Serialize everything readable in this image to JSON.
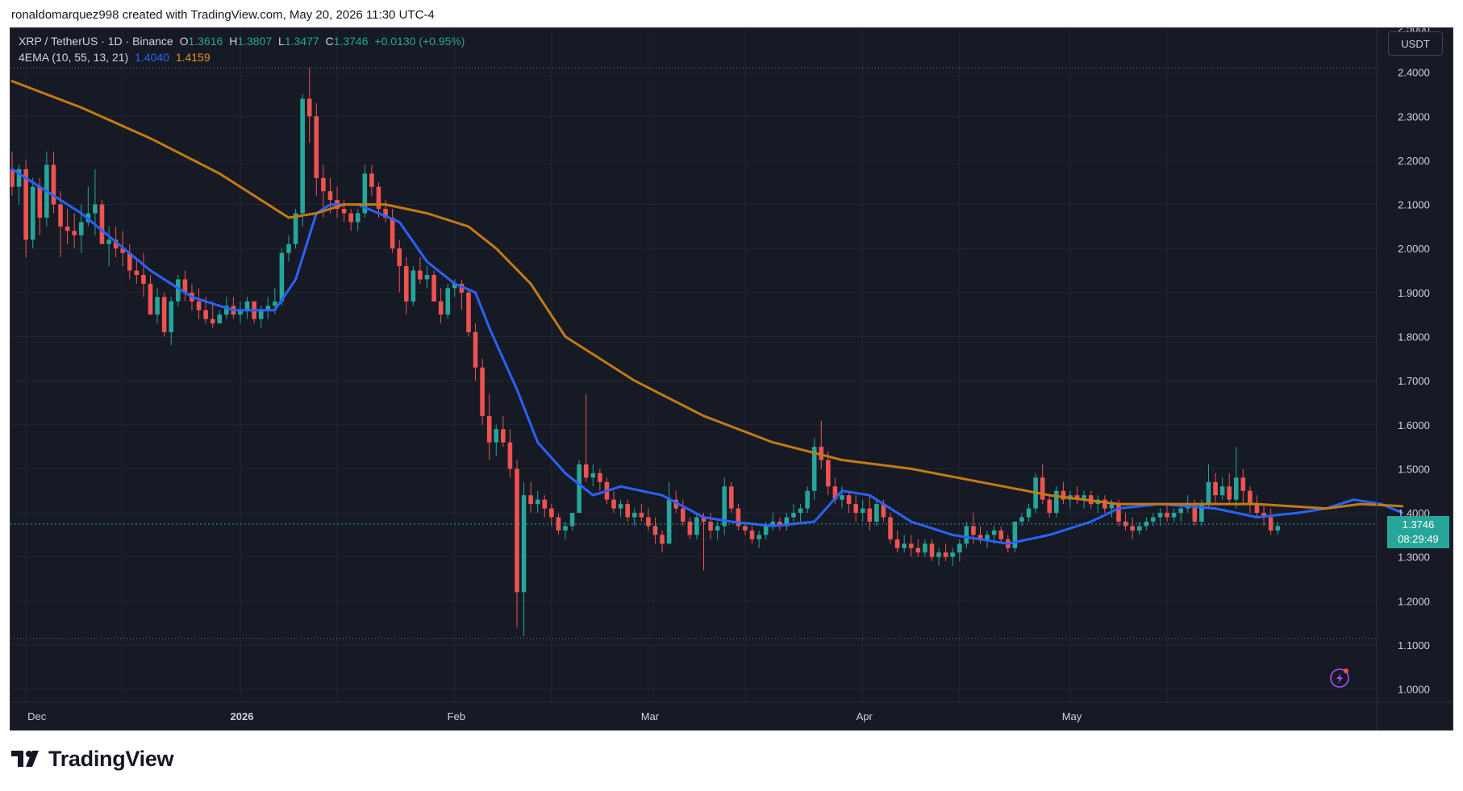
{
  "header": {
    "attribution": "ronaldomarquez998 created with TradingView.com, May 20, 2026 11:30 UTC-4"
  },
  "legend": {
    "symbol": "XRP / TetherUS · 1D · Binance",
    "open_label": "O",
    "open": "1.3616",
    "high_label": "H",
    "high": "1.3807",
    "low_label": "L",
    "low": "1.3477",
    "close_label": "C",
    "close": "1.3746",
    "change": "+0.0130 (+0.95%)",
    "indicator_name": "4EMA (10, 55, 13, 21)",
    "ema_fast_value": "1.4040",
    "ema_slow_value": "1.4159"
  },
  "price_scale": {
    "currency": "USDT",
    "last_price": "1.3746",
    "countdown": "08:29:49"
  },
  "brand": {
    "name": "TradingView"
  },
  "colors": {
    "background": "#161a25",
    "grid": "#232632",
    "up": "#26a69a",
    "down": "#ef5350",
    "ema_fast": "#2962ff",
    "ema_slow": "#c47a12",
    "text": "#d1d4dc"
  },
  "chart_data": {
    "type": "candlestick",
    "interval": "1D",
    "ylim": [
      0.97,
      2.5
    ],
    "y_ticks": [
      "1.0000",
      "1.1000",
      "1.2000",
      "1.3000",
      "1.4000",
      "1.5000",
      "1.6000",
      "1.7000",
      "1.8000",
      "1.9000",
      "2.0000",
      "2.1000",
      "2.2000",
      "2.3000",
      "2.4000"
    ],
    "x_ticks": [
      {
        "label": "Dec",
        "date": "2025-12-01"
      },
      {
        "label": "2026",
        "date": "2026-01-01"
      },
      {
        "label": "Feb",
        "date": "2026-02-01"
      },
      {
        "label": "Mar",
        "date": "2026-03-01"
      },
      {
        "label": "Apr",
        "date": "2026-04-01"
      },
      {
        "label": "May",
        "date": "2026-05-01"
      }
    ],
    "first_date": "2025-11-29",
    "last_date": "2026-05-20",
    "high_marker": 2.41,
    "low_marker": 1.115,
    "candles": [
      [
        2.18,
        2.22,
        2.12,
        2.14
      ],
      [
        2.14,
        2.19,
        2.1,
        2.18
      ],
      [
        2.18,
        2.2,
        1.98,
        2.02
      ],
      [
        2.02,
        2.16,
        2.0,
        2.14
      ],
      [
        2.14,
        2.16,
        2.03,
        2.07
      ],
      [
        2.07,
        2.22,
        2.05,
        2.19
      ],
      [
        2.19,
        2.22,
        2.08,
        2.1
      ],
      [
        2.1,
        2.13,
        1.98,
        2.05
      ],
      [
        2.05,
        2.09,
        2.01,
        2.04
      ],
      [
        2.04,
        2.08,
        2.0,
        2.03
      ],
      [
        2.03,
        2.1,
        1.99,
        2.06
      ],
      [
        2.06,
        2.14,
        2.05,
        2.08
      ],
      [
        2.08,
        2.18,
        2.03,
        2.1
      ],
      [
        2.1,
        2.11,
        2.02,
        2.01
      ],
      [
        2.01,
        2.05,
        1.96,
        2.02
      ],
      [
        2.02,
        2.05,
        1.98,
        2.0
      ],
      [
        2.0,
        2.04,
        1.96,
        1.99
      ],
      [
        1.99,
        2.01,
        1.93,
        1.95
      ],
      [
        1.95,
        1.98,
        1.92,
        1.94
      ],
      [
        1.94,
        1.99,
        1.89,
        1.92
      ],
      [
        1.92,
        1.94,
        1.85,
        1.85
      ],
      [
        1.85,
        1.91,
        1.83,
        1.89
      ],
      [
        1.89,
        1.9,
        1.8,
        1.81
      ],
      [
        1.81,
        1.89,
        1.78,
        1.88
      ],
      [
        1.88,
        1.94,
        1.87,
        1.93
      ],
      [
        1.93,
        1.95,
        1.88,
        1.9
      ],
      [
        1.9,
        1.92,
        1.86,
        1.88
      ],
      [
        1.88,
        1.91,
        1.84,
        1.86
      ],
      [
        1.86,
        1.89,
        1.83,
        1.84
      ],
      [
        1.84,
        1.88,
        1.82,
        1.83
      ],
      [
        1.83,
        1.86,
        1.83,
        1.85
      ],
      [
        1.85,
        1.89,
        1.84,
        1.87
      ],
      [
        1.87,
        1.89,
        1.84,
        1.85
      ],
      [
        1.85,
        1.88,
        1.83,
        1.86
      ],
      [
        1.86,
        1.89,
        1.84,
        1.88
      ],
      [
        1.88,
        1.88,
        1.83,
        1.84
      ],
      [
        1.84,
        1.87,
        1.82,
        1.86
      ],
      [
        1.86,
        1.89,
        1.84,
        1.87
      ],
      [
        1.87,
        1.91,
        1.85,
        1.88
      ],
      [
        1.88,
        2.0,
        1.87,
        1.99
      ],
      [
        1.99,
        2.03,
        1.97,
        2.01
      ],
      [
        2.01,
        2.09,
        2.0,
        2.08
      ],
      [
        2.08,
        2.35,
        2.05,
        2.34
      ],
      [
        2.34,
        2.41,
        2.24,
        2.3
      ],
      [
        2.3,
        2.33,
        2.12,
        2.16
      ],
      [
        2.16,
        2.19,
        2.07,
        2.13
      ],
      [
        2.13,
        2.16,
        2.08,
        2.11
      ],
      [
        2.11,
        2.14,
        2.07,
        2.09
      ],
      [
        2.09,
        2.11,
        2.06,
        2.08
      ],
      [
        2.08,
        2.09,
        2.04,
        2.06
      ],
      [
        2.06,
        2.09,
        2.04,
        2.08
      ],
      [
        2.08,
        2.19,
        2.07,
        2.17
      ],
      [
        2.17,
        2.19,
        2.12,
        2.14
      ],
      [
        2.14,
        2.15,
        2.07,
        2.09
      ],
      [
        2.09,
        2.11,
        2.06,
        2.07
      ],
      [
        2.07,
        2.09,
        1.99,
        2.0
      ],
      [
        2.0,
        2.02,
        1.9,
        1.96
      ],
      [
        1.96,
        1.98,
        1.85,
        1.88
      ],
      [
        1.88,
        1.96,
        1.87,
        1.95
      ],
      [
        1.95,
        1.98,
        1.92,
        1.93
      ],
      [
        1.93,
        1.96,
        1.91,
        1.94
      ],
      [
        1.94,
        1.95,
        1.88,
        1.88
      ],
      [
        1.88,
        1.91,
        1.83,
        1.85
      ],
      [
        1.85,
        1.92,
        1.84,
        1.91
      ],
      [
        1.91,
        1.93,
        1.89,
        1.92
      ],
      [
        1.92,
        1.93,
        1.86,
        1.9
      ],
      [
        1.9,
        1.91,
        1.8,
        1.81
      ],
      [
        1.81,
        1.83,
        1.7,
        1.73
      ],
      [
        1.73,
        1.75,
        1.6,
        1.62
      ],
      [
        1.62,
        1.67,
        1.52,
        1.56
      ],
      [
        1.56,
        1.6,
        1.53,
        1.59
      ],
      [
        1.59,
        1.62,
        1.55,
        1.56
      ],
      [
        1.56,
        1.59,
        1.48,
        1.5
      ],
      [
        1.5,
        1.52,
        1.14,
        1.22
      ],
      [
        1.22,
        1.47,
        1.12,
        1.44
      ],
      [
        1.44,
        1.47,
        1.4,
        1.42
      ],
      [
        1.42,
        1.45,
        1.4,
        1.43
      ],
      [
        1.43,
        1.44,
        1.39,
        1.41
      ],
      [
        1.41,
        1.42,
        1.37,
        1.39
      ],
      [
        1.39,
        1.4,
        1.35,
        1.36
      ],
      [
        1.36,
        1.38,
        1.34,
        1.37
      ],
      [
        1.37,
        1.4,
        1.36,
        1.4
      ],
      [
        1.4,
        1.52,
        1.4,
        1.51
      ],
      [
        1.51,
        1.67,
        1.47,
        1.48
      ],
      [
        1.48,
        1.51,
        1.46,
        1.49
      ],
      [
        1.49,
        1.5,
        1.45,
        1.47
      ],
      [
        1.47,
        1.48,
        1.42,
        1.43
      ],
      [
        1.43,
        1.45,
        1.4,
        1.41
      ],
      [
        1.41,
        1.43,
        1.39,
        1.42
      ],
      [
        1.42,
        1.43,
        1.38,
        1.39
      ],
      [
        1.39,
        1.41,
        1.37,
        1.4
      ],
      [
        1.4,
        1.42,
        1.38,
        1.39
      ],
      [
        1.39,
        1.41,
        1.36,
        1.37
      ],
      [
        1.37,
        1.39,
        1.33,
        1.35
      ],
      [
        1.35,
        1.36,
        1.31,
        1.33
      ],
      [
        1.33,
        1.47,
        1.33,
        1.43
      ],
      [
        1.43,
        1.45,
        1.4,
        1.41
      ],
      [
        1.41,
        1.43,
        1.37,
        1.38
      ],
      [
        1.38,
        1.39,
        1.34,
        1.35
      ],
      [
        1.35,
        1.4,
        1.34,
        1.39
      ],
      [
        1.39,
        1.4,
        1.27,
        1.38
      ],
      [
        1.38,
        1.4,
        1.34,
        1.36
      ],
      [
        1.36,
        1.38,
        1.34,
        1.37
      ],
      [
        1.37,
        1.48,
        1.35,
        1.46
      ],
      [
        1.46,
        1.47,
        1.4,
        1.41
      ],
      [
        1.41,
        1.42,
        1.36,
        1.37
      ],
      [
        1.37,
        1.38,
        1.35,
        1.36
      ],
      [
        1.36,
        1.37,
        1.33,
        1.34
      ],
      [
        1.34,
        1.36,
        1.32,
        1.35
      ],
      [
        1.35,
        1.38,
        1.34,
        1.37
      ],
      [
        1.37,
        1.4,
        1.36,
        1.38
      ],
      [
        1.38,
        1.39,
        1.36,
        1.37
      ],
      [
        1.37,
        1.4,
        1.36,
        1.39
      ],
      [
        1.39,
        1.42,
        1.38,
        1.4
      ],
      [
        1.4,
        1.42,
        1.38,
        1.41
      ],
      [
        1.41,
        1.46,
        1.4,
        1.45
      ],
      [
        1.45,
        1.57,
        1.43,
        1.55
      ],
      [
        1.55,
        1.61,
        1.5,
        1.52
      ],
      [
        1.52,
        1.54,
        1.44,
        1.46
      ],
      [
        1.46,
        1.48,
        1.42,
        1.43
      ],
      [
        1.43,
        1.46,
        1.41,
        1.44
      ],
      [
        1.44,
        1.45,
        1.4,
        1.42
      ],
      [
        1.42,
        1.44,
        1.38,
        1.4
      ],
      [
        1.4,
        1.43,
        1.38,
        1.41
      ],
      [
        1.41,
        1.44,
        1.36,
        1.38
      ],
      [
        1.38,
        1.43,
        1.37,
        1.42
      ],
      [
        1.42,
        1.43,
        1.38,
        1.39
      ],
      [
        1.39,
        1.4,
        1.33,
        1.34
      ],
      [
        1.34,
        1.36,
        1.31,
        1.32
      ],
      [
        1.32,
        1.35,
        1.31,
        1.33
      ],
      [
        1.33,
        1.35,
        1.3,
        1.32
      ],
      [
        1.32,
        1.34,
        1.3,
        1.31
      ],
      [
        1.31,
        1.34,
        1.3,
        1.33
      ],
      [
        1.33,
        1.34,
        1.29,
        1.3
      ],
      [
        1.3,
        1.32,
        1.28,
        1.31
      ],
      [
        1.31,
        1.33,
        1.29,
        1.3
      ],
      [
        1.3,
        1.32,
        1.28,
        1.31
      ],
      [
        1.31,
        1.34,
        1.29,
        1.33
      ],
      [
        1.33,
        1.38,
        1.32,
        1.37
      ],
      [
        1.37,
        1.4,
        1.33,
        1.35
      ],
      [
        1.35,
        1.37,
        1.33,
        1.34
      ],
      [
        1.34,
        1.36,
        1.32,
        1.35
      ],
      [
        1.35,
        1.37,
        1.33,
        1.36
      ],
      [
        1.36,
        1.37,
        1.33,
        1.34
      ],
      [
        1.34,
        1.35,
        1.31,
        1.32
      ],
      [
        1.32,
        1.38,
        1.31,
        1.38
      ],
      [
        1.38,
        1.4,
        1.37,
        1.39
      ],
      [
        1.39,
        1.42,
        1.38,
        1.41
      ],
      [
        1.41,
        1.49,
        1.4,
        1.48
      ],
      [
        1.48,
        1.51,
        1.42,
        1.43
      ],
      [
        1.43,
        1.44,
        1.39,
        1.4
      ],
      [
        1.4,
        1.46,
        1.39,
        1.45
      ],
      [
        1.45,
        1.47,
        1.42,
        1.43
      ],
      [
        1.43,
        1.45,
        1.41,
        1.44
      ],
      [
        1.44,
        1.46,
        1.42,
        1.43
      ],
      [
        1.43,
        1.45,
        1.41,
        1.44
      ],
      [
        1.44,
        1.45,
        1.41,
        1.42
      ],
      [
        1.42,
        1.44,
        1.4,
        1.43
      ],
      [
        1.43,
        1.44,
        1.4,
        1.41
      ],
      [
        1.41,
        1.43,
        1.39,
        1.42
      ],
      [
        1.42,
        1.43,
        1.37,
        1.38
      ],
      [
        1.38,
        1.4,
        1.36,
        1.37
      ],
      [
        1.37,
        1.39,
        1.34,
        1.36
      ],
      [
        1.36,
        1.38,
        1.35,
        1.37
      ],
      [
        1.37,
        1.39,
        1.36,
        1.38
      ],
      [
        1.38,
        1.4,
        1.37,
        1.39
      ],
      [
        1.39,
        1.41,
        1.37,
        1.4
      ],
      [
        1.4,
        1.42,
        1.38,
        1.39
      ],
      [
        1.39,
        1.41,
        1.38,
        1.4
      ],
      [
        1.4,
        1.42,
        1.38,
        1.41
      ],
      [
        1.41,
        1.44,
        1.4,
        1.42
      ],
      [
        1.42,
        1.43,
        1.37,
        1.38
      ],
      [
        1.38,
        1.43,
        1.37,
        1.42
      ],
      [
        1.42,
        1.51,
        1.41,
        1.47
      ],
      [
        1.47,
        1.49,
        1.42,
        1.44
      ],
      [
        1.44,
        1.48,
        1.43,
        1.46
      ],
      [
        1.46,
        1.49,
        1.42,
        1.43
      ],
      [
        1.43,
        1.55,
        1.41,
        1.48
      ],
      [
        1.48,
        1.5,
        1.42,
        1.45
      ],
      [
        1.45,
        1.46,
        1.4,
        1.42
      ],
      [
        1.42,
        1.44,
        1.39,
        1.4
      ],
      [
        1.4,
        1.42,
        1.37,
        1.39
      ],
      [
        1.39,
        1.41,
        1.35,
        1.36
      ],
      [
        1.36,
        1.38,
        1.35,
        1.37
      ]
    ],
    "series": [
      {
        "name": "EMA 10",
        "color": "#2962ff",
        "points": [
          [
            0,
            2.18
          ],
          [
            10,
            2.08
          ],
          [
            20,
            1.95
          ],
          [
            26,
            1.89
          ],
          [
            32,
            1.86
          ],
          [
            38,
            1.86
          ],
          [
            41,
            1.93
          ],
          [
            44,
            2.08
          ],
          [
            46,
            2.1
          ],
          [
            50,
            2.1
          ],
          [
            56,
            2.06
          ],
          [
            60,
            1.97
          ],
          [
            64,
            1.92
          ],
          [
            67,
            1.9
          ],
          [
            69,
            1.82
          ],
          [
            73,
            1.68
          ],
          [
            76,
            1.56
          ],
          [
            80,
            1.49
          ],
          [
            84,
            1.44
          ],
          [
            88,
            1.46
          ],
          [
            94,
            1.44
          ],
          [
            100,
            1.39
          ],
          [
            104,
            1.38
          ],
          [
            110,
            1.37
          ],
          [
            116,
            1.38
          ],
          [
            120,
            1.45
          ],
          [
            124,
            1.44
          ],
          [
            130,
            1.38
          ],
          [
            136,
            1.35
          ],
          [
            144,
            1.33
          ],
          [
            150,
            1.35
          ],
          [
            156,
            1.38
          ],
          [
            160,
            1.41
          ],
          [
            166,
            1.42
          ],
          [
            174,
            1.41
          ],
          [
            180,
            1.39
          ],
          [
            186,
            1.4
          ],
          [
            190,
            1.41
          ],
          [
            194,
            1.43
          ],
          [
            198,
            1.42
          ],
          [
            201,
            1.4
          ]
        ]
      },
      {
        "name": "EMA 55",
        "color": "#c47a12",
        "points": [
          [
            0,
            2.38
          ],
          [
            10,
            2.32
          ],
          [
            20,
            2.25
          ],
          [
            30,
            2.17
          ],
          [
            40,
            2.07
          ],
          [
            44,
            2.08
          ],
          [
            48,
            2.1
          ],
          [
            54,
            2.1
          ],
          [
            60,
            2.08
          ],
          [
            66,
            2.05
          ],
          [
            70,
            2.0
          ],
          [
            75,
            1.92
          ],
          [
            80,
            1.8
          ],
          [
            90,
            1.7
          ],
          [
            100,
            1.62
          ],
          [
            110,
            1.56
          ],
          [
            120,
            1.52
          ],
          [
            130,
            1.5
          ],
          [
            140,
            1.47
          ],
          [
            150,
            1.44
          ],
          [
            160,
            1.42
          ],
          [
            170,
            1.42
          ],
          [
            180,
            1.42
          ],
          [
            190,
            1.41
          ],
          [
            195,
            1.42
          ],
          [
            201,
            1.415
          ]
        ]
      }
    ]
  }
}
